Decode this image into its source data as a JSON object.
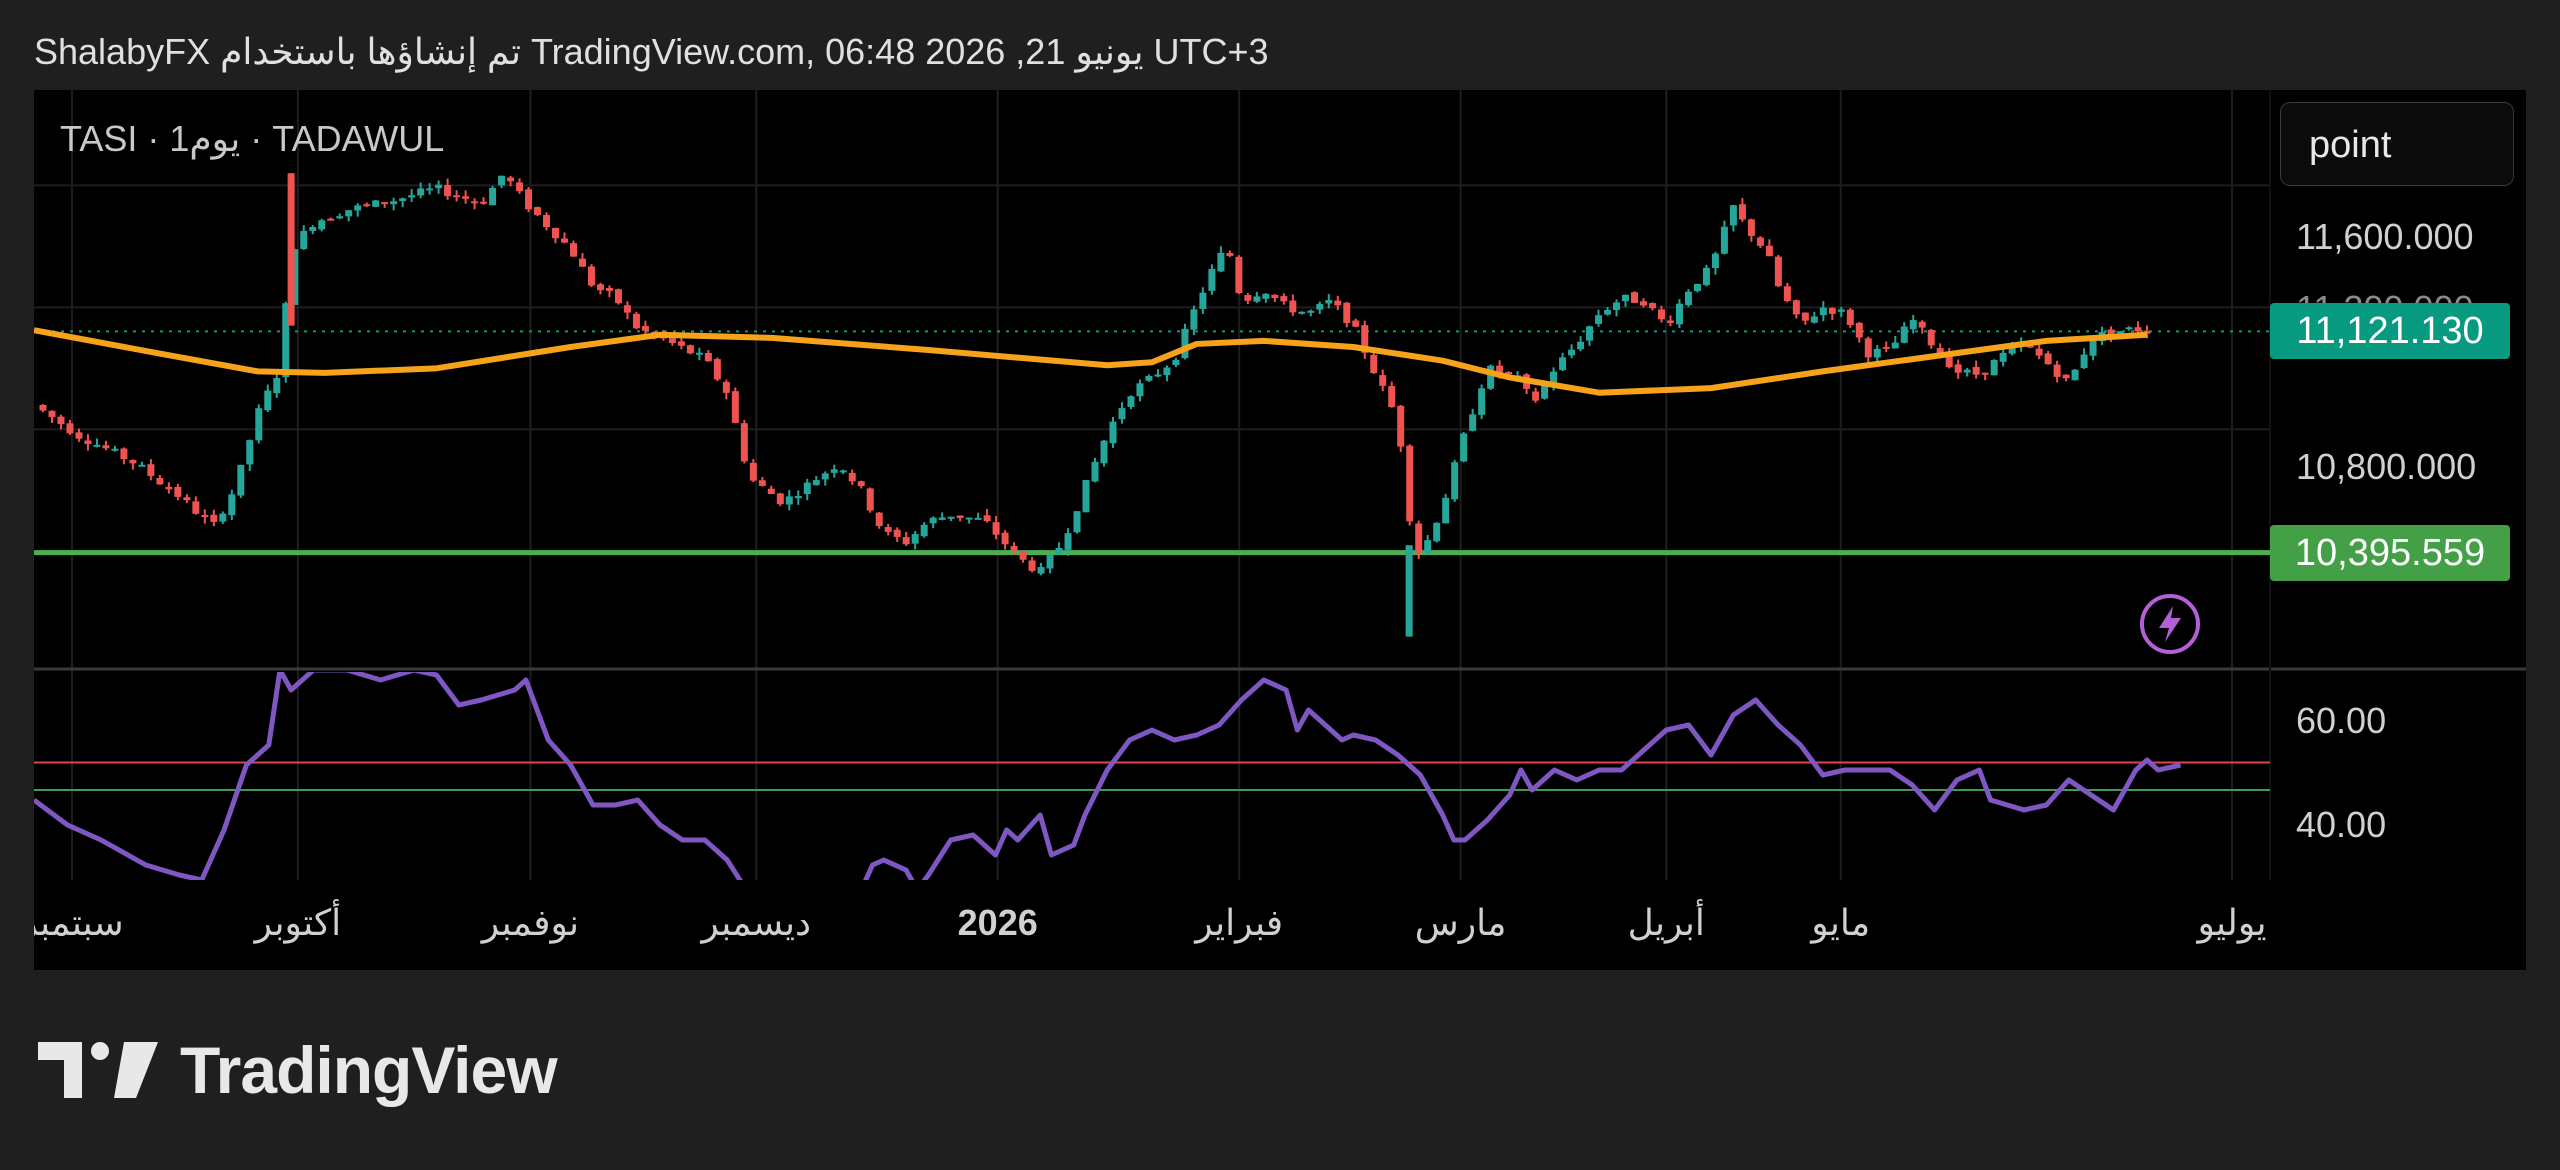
{
  "header": {
    "text": "ShalabyFX تم إنشاؤها باستخدام TradingView.com, 06:48 2026 ,21 يونيو UTC+3"
  },
  "symbol": {
    "label": "TASI · 1يوم · TADAWUL"
  },
  "mode_button": {
    "label": "point"
  },
  "brand": {
    "name": "TradingView"
  },
  "colors": {
    "up": "#26a69a",
    "down": "#ef5350",
    "ma": "#f7a21b",
    "support": "#4caf50",
    "rsi": "#7e57c2",
    "rsi_upper": "#e0434f",
    "rsi_lower": "#3f9b52",
    "last_price_badge": "#089981",
    "support_badge": "#43a047",
    "lightning": "#b45fd6"
  },
  "icons": {
    "lightning": "lightning-icon",
    "logo": "tradingview-logo-icon"
  },
  "chart_data": {
    "type": "candlestick",
    "x_labels": [
      "سبتمبر",
      "أكتوبر",
      "نوفمبر",
      "ديسمبر",
      "2026",
      "فبراير",
      "مارس",
      "أبريل",
      "مايو",
      "يوليو"
    ],
    "x_label_positions": [
      0.017,
      0.118,
      0.222,
      0.323,
      0.431,
      0.539,
      0.638,
      0.73,
      0.808,
      0.983
    ],
    "price_axis": {
      "ticks": [
        "11,600.000",
        "11,200.000",
        "10,800.000"
      ],
      "tick_values": [
        11600,
        11200,
        10800
      ],
      "range": [
        10050,
        11880
      ]
    },
    "last_price": {
      "value": 11121.13,
      "label": "11,121.130"
    },
    "support_level": {
      "value": 10395.559,
      "label": "10,395.559"
    },
    "moving_average": {
      "name": "MA",
      "points": [
        [
          0,
          11125
        ],
        [
          0.055,
          11050
        ],
        [
          0.1,
          10990
        ],
        [
          0.13,
          10985
        ],
        [
          0.18,
          11000
        ],
        [
          0.24,
          11070
        ],
        [
          0.28,
          11110
        ],
        [
          0.33,
          11100
        ],
        [
          0.4,
          11060
        ],
        [
          0.44,
          11035
        ],
        [
          0.48,
          11010
        ],
        [
          0.5,
          11020
        ],
        [
          0.52,
          11080
        ],
        [
          0.55,
          11090
        ],
        [
          0.59,
          11070
        ],
        [
          0.63,
          11025
        ],
        [
          0.66,
          10970
        ],
        [
          0.7,
          10920
        ],
        [
          0.75,
          10935
        ],
        [
          0.8,
          10990
        ],
        [
          0.85,
          11040
        ],
        [
          0.9,
          11090
        ],
        [
          0.945,
          11110
        ]
      ]
    },
    "candles_path": [
      [
        0,
        10880
      ],
      [
        0.02,
        10780
      ],
      [
        0.045,
        10690
      ],
      [
        0.065,
        10580
      ],
      [
        0.08,
        10480
      ],
      [
        0.09,
        10610
      ],
      [
        0.1,
        10850
      ],
      [
        0.11,
        11000
      ],
      [
        0.115,
        11390
      ],
      [
        0.125,
        11480
      ],
      [
        0.14,
        11520
      ],
      [
        0.16,
        11550
      ],
      [
        0.18,
        11590
      ],
      [
        0.2,
        11540
      ],
      [
        0.21,
        11640
      ],
      [
        0.22,
        11540
      ],
      [
        0.24,
        11390
      ],
      [
        0.25,
        11270
      ],
      [
        0.26,
        11230
      ],
      [
        0.27,
        11130
      ],
      [
        0.28,
        11100
      ],
      [
        0.3,
        11030
      ],
      [
        0.31,
        10920
      ],
      [
        0.32,
        10640
      ],
      [
        0.335,
        10560
      ],
      [
        0.35,
        10640
      ],
      [
        0.36,
        10690
      ],
      [
        0.37,
        10600
      ],
      [
        0.38,
        10460
      ],
      [
        0.39,
        10430
      ],
      [
        0.4,
        10500
      ],
      [
        0.41,
        10520
      ],
      [
        0.425,
        10500
      ],
      [
        0.44,
        10380
      ],
      [
        0.45,
        10330
      ],
      [
        0.46,
        10430
      ],
      [
        0.47,
        10610
      ],
      [
        0.48,
        10790
      ],
      [
        0.49,
        10920
      ],
      [
        0.5,
        10970
      ],
      [
        0.51,
        11030
      ],
      [
        0.52,
        11210
      ],
      [
        0.53,
        11370
      ],
      [
        0.535,
        11370
      ],
      [
        0.54,
        11220
      ],
      [
        0.55,
        11260
      ],
      [
        0.56,
        11200
      ],
      [
        0.57,
        11180
      ],
      [
        0.58,
        11220
      ],
      [
        0.59,
        11140
      ],
      [
        0.6,
        10980
      ],
      [
        0.61,
        10830
      ],
      [
        0.615,
        10520
      ],
      [
        0.62,
        10380
      ],
      [
        0.63,
        10550
      ],
      [
        0.64,
        10790
      ],
      [
        0.65,
        11000
      ],
      [
        0.665,
        10960
      ],
      [
        0.67,
        10880
      ],
      [
        0.68,
        11000
      ],
      [
        0.69,
        11080
      ],
      [
        0.7,
        11180
      ],
      [
        0.71,
        11230
      ],
      [
        0.72,
        11220
      ],
      [
        0.73,
        11140
      ],
      [
        0.74,
        11260
      ],
      [
        0.75,
        11330
      ],
      [
        0.76,
        11530
      ],
      [
        0.765,
        11470
      ],
      [
        0.775,
        11380
      ],
      [
        0.78,
        11270
      ],
      [
        0.79,
        11140
      ],
      [
        0.8,
        11200
      ],
      [
        0.81,
        11180
      ],
      [
        0.82,
        11050
      ],
      [
        0.83,
        11060
      ],
      [
        0.84,
        11160
      ],
      [
        0.85,
        11070
      ],
      [
        0.86,
        10990
      ],
      [
        0.87,
        10980
      ],
      [
        0.88,
        11040
      ],
      [
        0.89,
        11080
      ],
      [
        0.9,
        11020
      ],
      [
        0.91,
        10950
      ],
      [
        0.92,
        11100
      ],
      [
        0.93,
        11120
      ],
      [
        0.94,
        11130
      ],
      [
        0.945,
        11121
      ]
    ],
    "rsi": {
      "ticks": [
        "60.00",
        "40.00"
      ],
      "tick_values": [
        60,
        40
      ],
      "range": [
        30,
        72
      ],
      "upper_line": 53.5,
      "lower_line": 48,
      "points": [
        [
          0,
          46
        ],
        [
          0.015,
          41
        ],
        [
          0.03,
          38
        ],
        [
          0.05,
          33
        ],
        [
          0.065,
          31
        ],
        [
          0.075,
          30
        ],
        [
          0.085,
          40
        ],
        [
          0.095,
          53
        ],
        [
          0.105,
          57
        ],
        [
          0.11,
          72
        ],
        [
          0.115,
          68
        ],
        [
          0.125,
          72
        ],
        [
          0.14,
          72
        ],
        [
          0.155,
          70
        ],
        [
          0.17,
          72
        ],
        [
          0.18,
          71
        ],
        [
          0.19,
          65
        ],
        [
          0.2,
          66
        ],
        [
          0.215,
          68
        ],
        [
          0.22,
          70
        ],
        [
          0.23,
          58
        ],
        [
          0.24,
          53
        ],
        [
          0.25,
          45
        ],
        [
          0.26,
          45
        ],
        [
          0.27,
          46
        ],
        [
          0.28,
          41
        ],
        [
          0.29,
          38
        ],
        [
          0.3,
          38
        ],
        [
          0.31,
          34
        ],
        [
          0.32,
          27
        ],
        [
          0.33,
          25
        ],
        [
          0.34,
          24
        ],
        [
          0.35,
          24
        ],
        [
          0.36,
          28
        ],
        [
          0.37,
          28
        ],
        [
          0.375,
          33
        ],
        [
          0.38,
          34
        ],
        [
          0.39,
          32
        ],
        [
          0.395,
          28
        ],
        [
          0.4,
          31
        ],
        [
          0.41,
          38
        ],
        [
          0.42,
          39
        ],
        [
          0.43,
          35
        ],
        [
          0.435,
          40
        ],
        [
          0.44,
          38
        ],
        [
          0.45,
          43
        ],
        [
          0.455,
          35
        ],
        [
          0.465,
          37
        ],
        [
          0.47,
          43
        ],
        [
          0.48,
          52
        ],
        [
          0.49,
          58
        ],
        [
          0.5,
          60
        ],
        [
          0.51,
          58
        ],
        [
          0.52,
          59
        ],
        [
          0.53,
          61
        ],
        [
          0.54,
          66
        ],
        [
          0.55,
          70
        ],
        [
          0.56,
          68
        ],
        [
          0.565,
          60
        ],
        [
          0.57,
          64
        ],
        [
          0.585,
          58
        ],
        [
          0.59,
          59
        ],
        [
          0.6,
          58
        ],
        [
          0.61,
          55
        ],
        [
          0.62,
          51
        ],
        [
          0.625,
          47
        ],
        [
          0.63,
          43
        ],
        [
          0.635,
          38
        ],
        [
          0.64,
          38
        ],
        [
          0.65,
          42
        ],
        [
          0.66,
          47
        ],
        [
          0.665,
          52
        ],
        [
          0.67,
          48
        ],
        [
          0.68,
          52
        ],
        [
          0.69,
          50
        ],
        [
          0.7,
          52
        ],
        [
          0.71,
          52
        ],
        [
          0.72,
          56
        ],
        [
          0.73,
          60
        ],
        [
          0.74,
          61
        ],
        [
          0.75,
          55
        ],
        [
          0.76,
          63
        ],
        [
          0.77,
          66
        ],
        [
          0.78,
          61
        ],
        [
          0.79,
          57
        ],
        [
          0.8,
          51
        ],
        [
          0.81,
          52
        ],
        [
          0.82,
          52
        ],
        [
          0.83,
          52
        ],
        [
          0.84,
          49
        ],
        [
          0.85,
          44
        ],
        [
          0.86,
          50
        ],
        [
          0.87,
          52
        ],
        [
          0.875,
          46
        ],
        [
          0.89,
          44
        ],
        [
          0.9,
          45
        ],
        [
          0.91,
          50
        ],
        [
          0.92,
          47
        ],
        [
          0.93,
          44
        ],
        [
          0.935,
          48
        ],
        [
          0.94,
          52
        ],
        [
          0.945,
          54
        ],
        [
          0.95,
          52
        ],
        [
          0.96,
          53
        ]
      ]
    }
  }
}
